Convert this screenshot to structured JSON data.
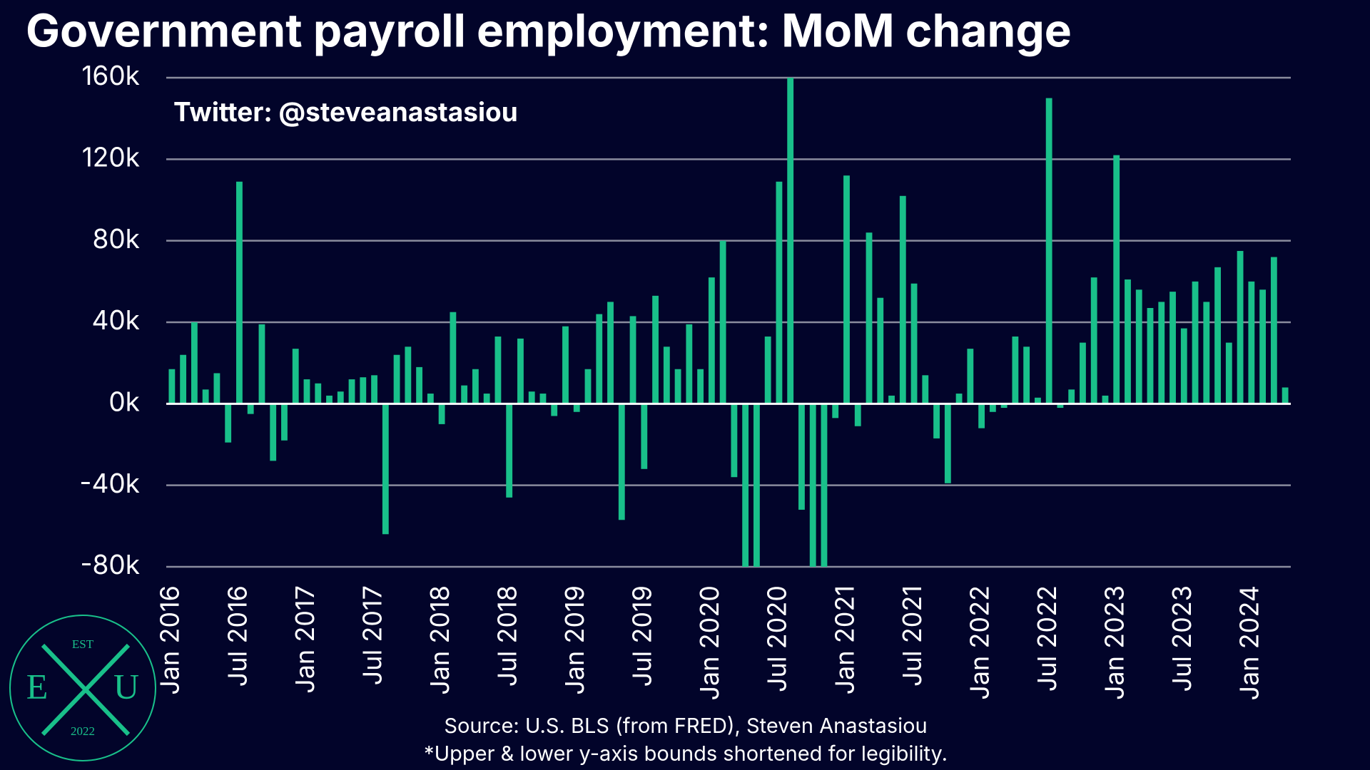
{
  "chart_data": {
    "type": "bar",
    "title": "Government payroll employment: MoM change",
    "annotation": "Twitter: @steveanastasiou",
    "source": "Source: U.S. BLS (from FRED), Steven Anastasiou",
    "note": "*Upper & lower y-axis bounds shortened for legibility.",
    "color": "#19c08a",
    "grid": true,
    "categories": [
      "Jan 2016",
      null,
      null,
      null,
      null,
      null,
      "Jul 2016",
      null,
      null,
      null,
      null,
      null,
      "Jan 2017",
      null,
      null,
      null,
      null,
      null,
      "Jul 2017",
      null,
      null,
      null,
      null,
      null,
      "Jan 2018",
      null,
      null,
      null,
      null,
      null,
      "Jul 2018",
      null,
      null,
      null,
      null,
      null,
      "Jan 2019",
      null,
      null,
      null,
      null,
      null,
      "Jul 2019",
      null,
      null,
      null,
      null,
      null,
      "Jan 2020",
      null,
      null,
      null,
      null,
      null,
      "Jul 2020",
      null,
      null,
      null,
      null,
      null,
      "Jan 2021",
      null,
      null,
      null,
      null,
      null,
      "Jul 2021",
      null,
      null,
      null,
      null,
      null,
      "Jan 2022",
      null,
      null,
      null,
      null,
      null,
      "Jul 2022",
      null,
      null,
      null,
      null,
      null,
      "Jan 2023",
      null,
      null,
      null,
      null,
      null,
      "Jul 2023",
      null,
      null,
      null,
      null,
      null,
      "Jan 2024",
      null,
      null,
      null
    ],
    "values": [
      17000,
      24000,
      40000,
      7000,
      15000,
      -19000,
      109000,
      -5000,
      39000,
      -28000,
      -18000,
      27000,
      12000,
      10000,
      4000,
      6000,
      12000,
      13000,
      14000,
      -64000,
      24000,
      28000,
      18000,
      5000,
      -10000,
      45000,
      9000,
      17000,
      5000,
      33000,
      -46000,
      32000,
      6000,
      5000,
      -6000,
      38000,
      -4000,
      17000,
      44000,
      50000,
      -57000,
      43000,
      -32000,
      53000,
      28000,
      17000,
      39000,
      17000,
      62000,
      80000,
      -36000,
      -80000,
      -80000,
      33000,
      109000,
      160000,
      -52000,
      -80000,
      -80000,
      -7000,
      112000,
      -11000,
      84000,
      52000,
      4000,
      102000,
      59000,
      14000,
      -17000,
      -39000,
      5000,
      27000,
      -12000,
      -4000,
      -2000,
      33000,
      28000,
      3000,
      150000,
      -2000,
      7000,
      30000,
      62000,
      4000,
      122000,
      61000,
      56000,
      47000,
      50000,
      55000,
      37000,
      60000,
      50000,
      67000,
      30000,
      75000,
      60000,
      56000,
      72000,
      8000
    ],
    "ylim": [
      -80000,
      160000
    ],
    "yticks": [
      {
        "value": -80000,
        "label": "-80k"
      },
      {
        "value": -40000,
        "label": "-40k"
      },
      {
        "value": 0,
        "label": "0k"
      },
      {
        "value": 40000,
        "label": "40k"
      },
      {
        "value": 80000,
        "label": "80k"
      },
      {
        "value": 120000,
        "label": "120k"
      },
      {
        "value": 160000,
        "label": "160k"
      }
    ]
  },
  "logo": {
    "top": "EST",
    "left": "E",
    "right": "U",
    "bottom": "2022"
  }
}
